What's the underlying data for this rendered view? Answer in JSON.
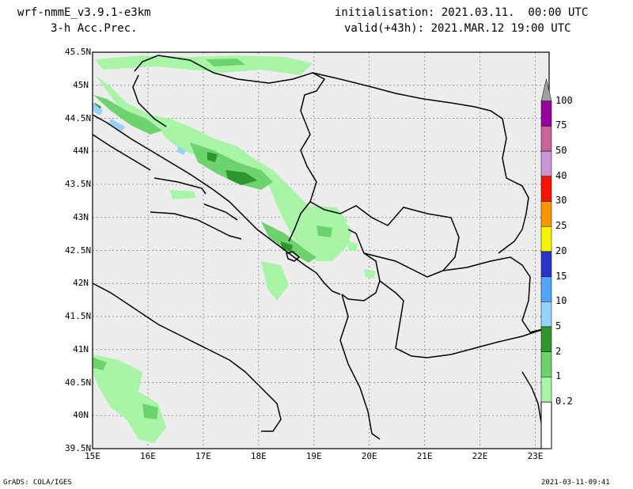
{
  "header": {
    "model": "wrf-nmmE_v3.9.1-e3km",
    "product": "3-h Acc.Prec.",
    "initialisation": "initialisation: 2021.03.11.  00:00 UTC",
    "valid": "valid(+43h): 2021.MAR.12 19:00 UTC"
  },
  "axes": {
    "lat_labels": [
      "45.5N",
      "45N",
      "44.5N",
      "44N",
      "43.5N",
      "43N",
      "42.5N",
      "42N",
      "41.5N",
      "41N",
      "40.5N",
      "40N",
      "39.5N"
    ],
    "lon_labels": [
      "15E",
      "16E",
      "17E",
      "18E",
      "19E",
      "20E",
      "21E",
      "22E",
      "23E"
    ],
    "lat_range": [
      39.5,
      45.5
    ],
    "lon_range": [
      15,
      23
    ],
    "grid": "dotted"
  },
  "colorbar": {
    "labels": [
      "0.2",
      "1",
      "2",
      "5",
      "10",
      "15",
      "20",
      "25",
      "30",
      "40",
      "50",
      "75",
      "100"
    ],
    "colors": [
      "#a8f5a8",
      "#6ed26e",
      "#2e962e",
      "#96d2fa",
      "#50a5f5",
      "#2d32c8",
      "#f5f500",
      "#fa9600",
      "#fa1400",
      "#c896d2",
      "#c86496",
      "#9600a0",
      "#a0a0a0"
    ]
  },
  "map_colors": {
    "background": "#ededed",
    "land_border": "#000000"
  },
  "footer": {
    "left": "GrADS: COLA/IGES",
    "right": "2021-03-11-09:41"
  }
}
